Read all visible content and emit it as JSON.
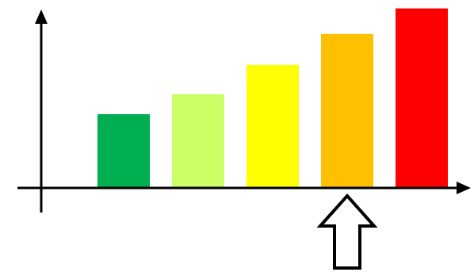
{
  "chart_data": {
    "type": "bar",
    "title": "",
    "xlabel": "",
    "ylabel": "",
    "categories": [
      "",
      "",
      "",
      "",
      ""
    ],
    "values": [
      4.0,
      5.1,
      6.7,
      8.4,
      9.8
    ],
    "ylim": [
      0,
      10
    ],
    "grid": false,
    "legend": "none",
    "colors": [
      "#00b050",
      "#ccff66",
      "#ffff00",
      "#ffc000",
      "#ff0000"
    ],
    "annotations": [
      {
        "type": "arrow",
        "direction": "up",
        "target_bar_index": 3,
        "style": "outline",
        "color": "#000000"
      }
    ]
  }
}
